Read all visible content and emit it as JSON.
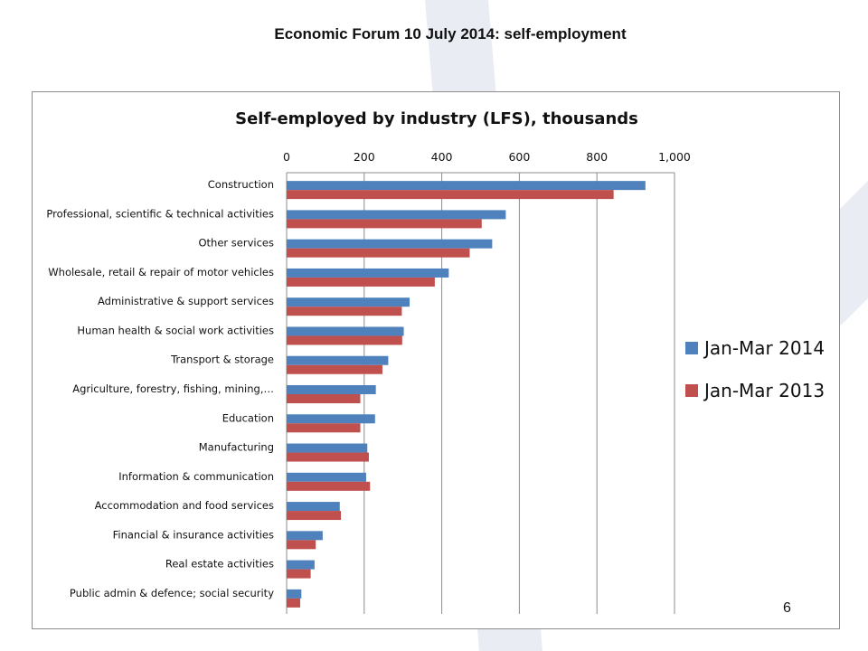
{
  "slide": {
    "title": "Economic Forum 10 July 2014: self-employment",
    "page_number": "6"
  },
  "colors": {
    "series_2014": "#4f81bd",
    "series_2013": "#c0504d",
    "gridline": "#8c8c8c",
    "background_accent": "#e9edf3"
  },
  "chart_data": {
    "type": "bar",
    "orientation": "horizontal",
    "title": "Self-employed by industry (LFS), thousands",
    "xlabel": "",
    "ylabel": "",
    "xlim": [
      0,
      1000
    ],
    "x_ticks": [
      0,
      200,
      400,
      600,
      800,
      1000
    ],
    "x_tick_labels": [
      "0",
      "200",
      "400",
      "600",
      "800",
      "1,000"
    ],
    "x_axis_position": "top",
    "grid": "vertical",
    "legend_position": "right",
    "categories": [
      "Construction",
      "Professional, scientific & technical activities",
      "Other services",
      "Wholesale, retail & repair of motor vehicles",
      "Administrative & support services",
      "Human health & social work activities",
      "Transport & storage",
      "Agriculture, forestry, fishing, mining,…",
      "Education",
      "Manufacturing",
      "Information & communication",
      "Accommodation and food services",
      "Financial & insurance activities",
      "Real estate activities",
      "Public admin & defence; social security"
    ],
    "series": [
      {
        "name": "Jan-Mar 2014",
        "color": "#4f81bd",
        "values": [
          925,
          565,
          530,
          418,
          317,
          302,
          262,
          230,
          228,
          208,
          205,
          137,
          93,
          72,
          38
        ]
      },
      {
        "name": "Jan-Mar 2013",
        "color": "#c0504d",
        "values": [
          843,
          503,
          472,
          382,
          297,
          298,
          247,
          190,
          190,
          212,
          215,
          140,
          75,
          62,
          35
        ]
      }
    ]
  }
}
